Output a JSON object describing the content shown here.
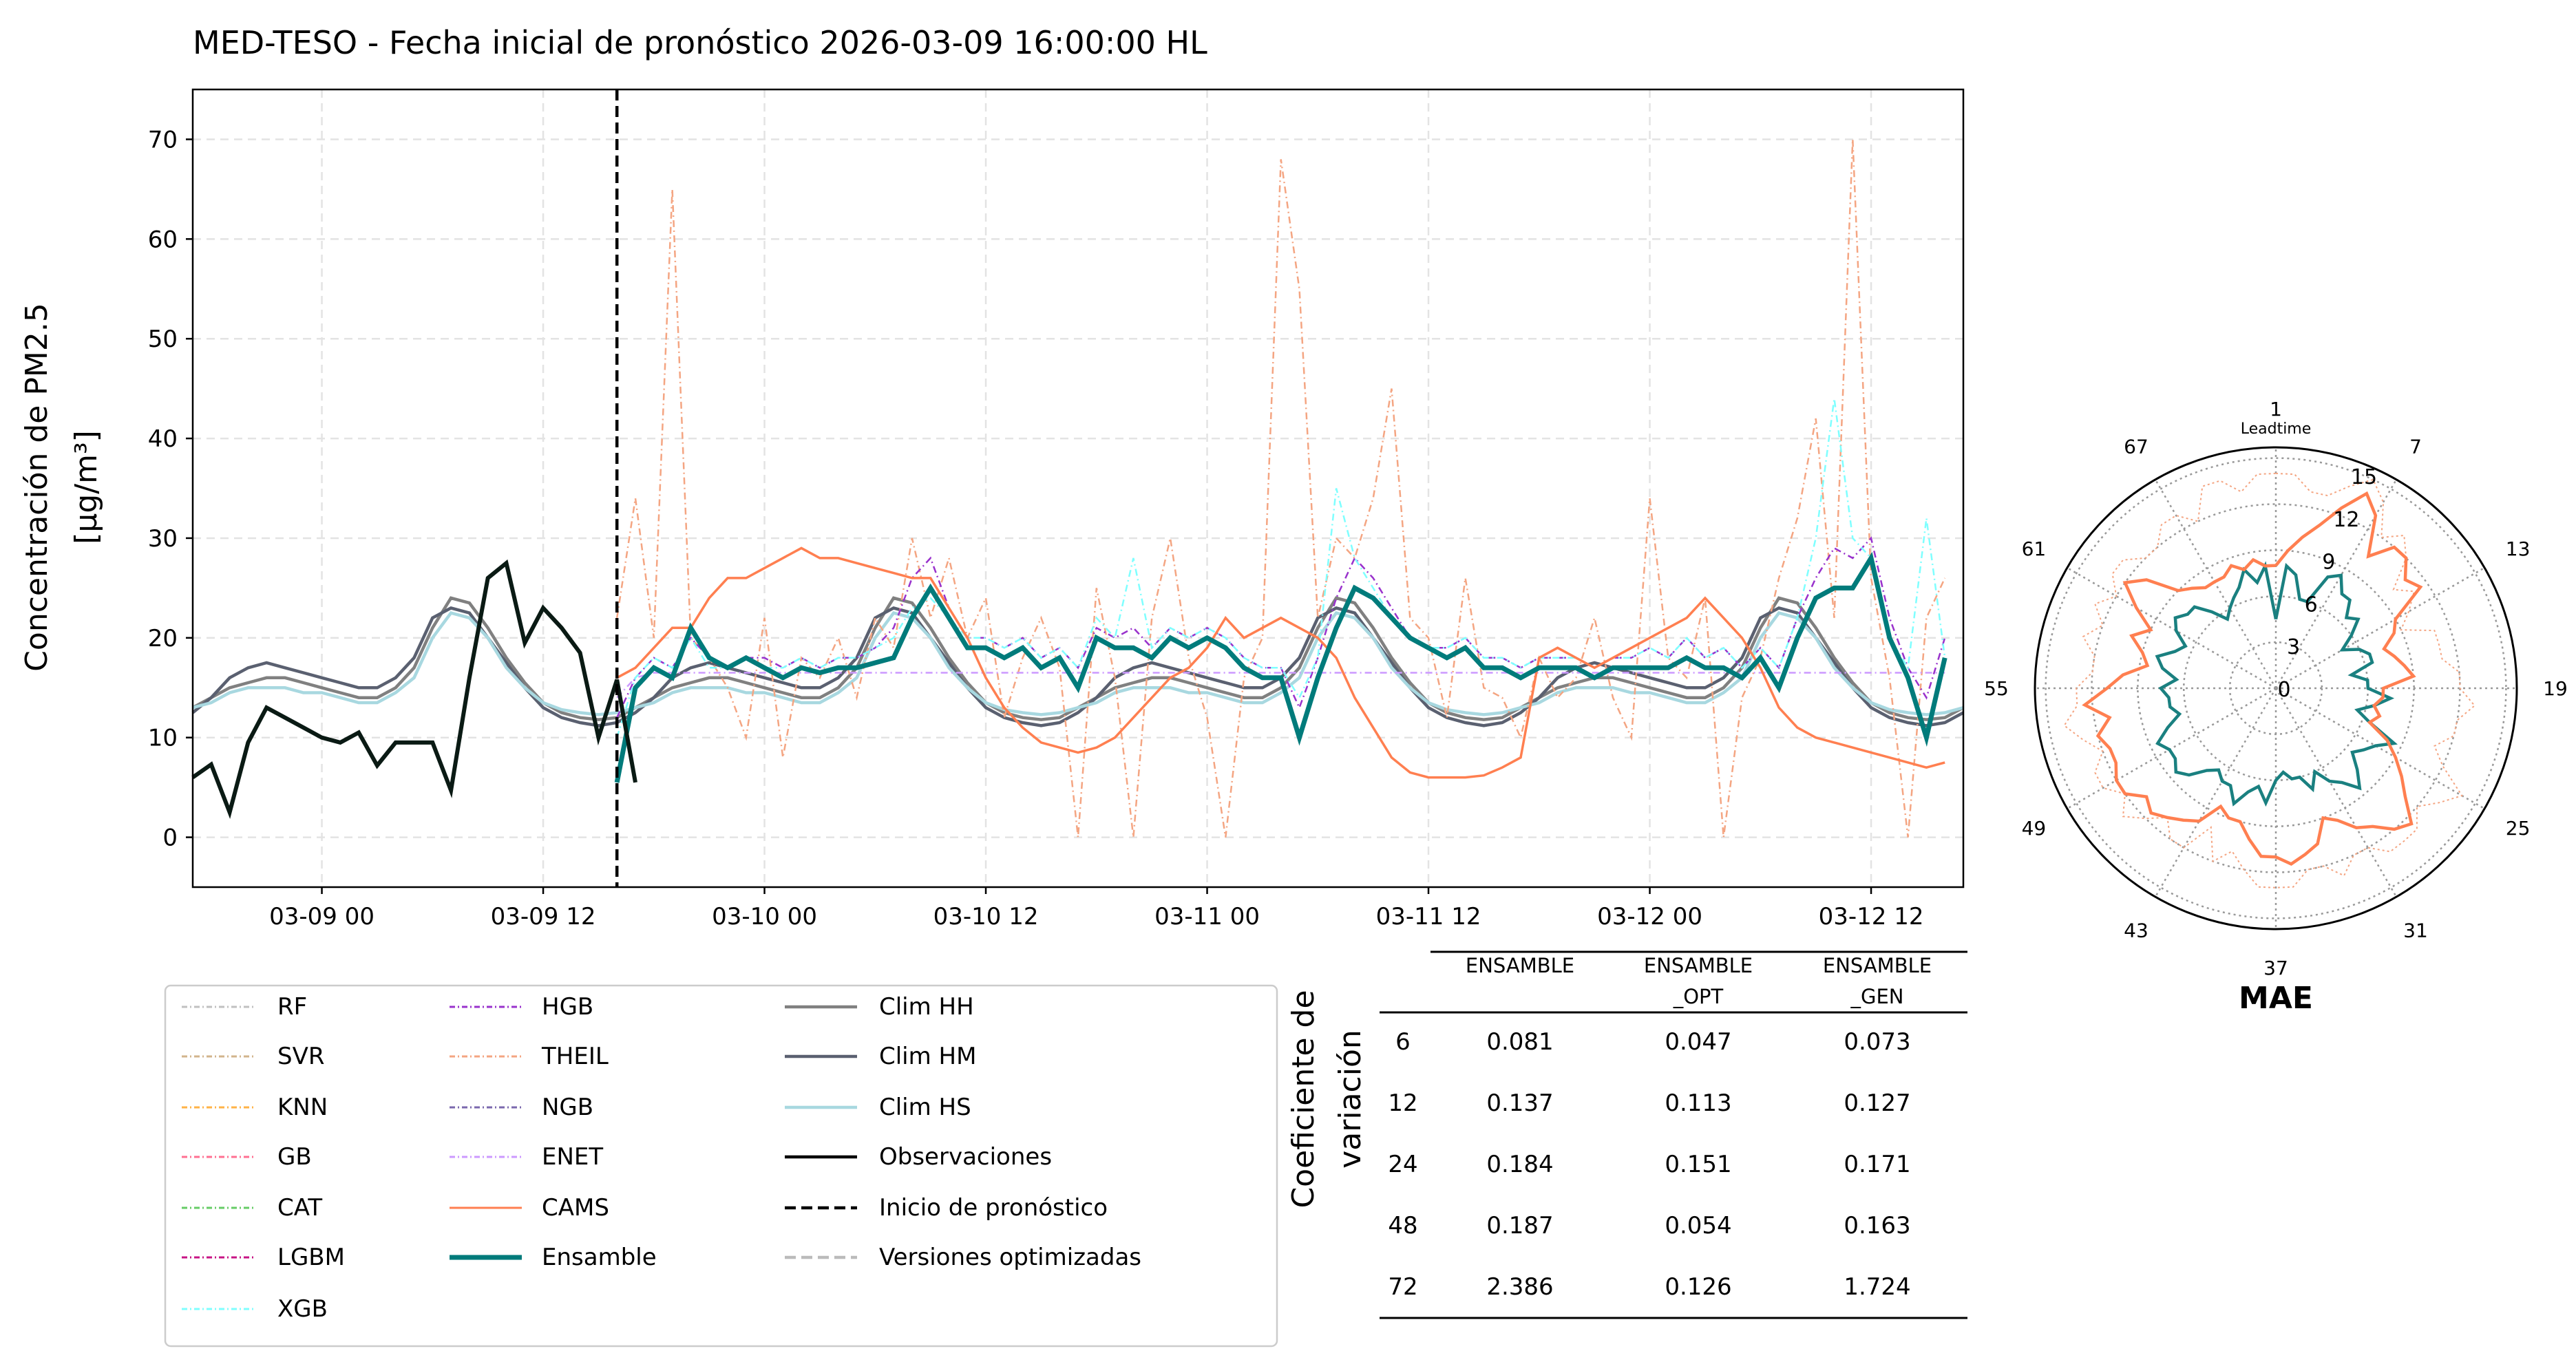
{
  "chart_data": [
    {
      "type": "line",
      "title": "MED-TESO - Fecha inicial de pronóstico 2026-03-09 16:00:00 HL",
      "ylabel_line1": "Concentración de PM2.5",
      "ylabel_line2": "[μg/m³]",
      "xlabel": "",
      "ylim": [
        -5,
        75
      ],
      "yticks": [
        0,
        10,
        20,
        30,
        40,
        50,
        60,
        70
      ],
      "x_units": "hours since 03-08 17:00",
      "xlim": [
        0,
        96
      ],
      "xticks": [
        {
          "h": 7,
          "label": "03-09 00"
        },
        {
          "h": 19,
          "label": "03-09 12"
        },
        {
          "h": 31,
          "label": "03-10 00"
        },
        {
          "h": 43,
          "label": "03-10 12"
        },
        {
          "h": 55,
          "label": "03-11 00"
        },
        {
          "h": 67,
          "label": "03-11 12"
        },
        {
          "h": 79,
          "label": "03-12 00"
        },
        {
          "h": 91,
          "label": "03-12 12"
        }
      ],
      "grid": true,
      "forecast_start_h": 23,
      "observations": {
        "start_h": 0,
        "values": [
          6,
          7.3,
          2.5,
          9.5,
          13,
          12,
          11,
          10,
          9.5,
          10.5,
          7.2,
          9.5,
          9.5,
          9.5,
          4.7,
          16,
          26,
          27.5,
          19.5,
          23,
          21,
          18.5,
          10,
          15.8,
          5.5
        ]
      },
      "climatology_start_h": 0,
      "climatology_profiles_by_hour": {
        "Clim HH": [
          15,
          14.5,
          14,
          14,
          15,
          17,
          21,
          24,
          23.5,
          21,
          18,
          15.5,
          13.5,
          12.5,
          12,
          11.8,
          12,
          13,
          14,
          15,
          15.5,
          16,
          16,
          15.5
        ],
        "Clim HM": [
          16,
          15.5,
          15,
          15,
          16,
          18,
          22,
          23,
          22.5,
          20,
          17.5,
          15,
          13,
          12,
          11.5,
          11.2,
          11.5,
          12.5,
          14,
          16,
          17,
          17.5,
          17,
          16.5
        ],
        "Clim HS": [
          14.5,
          14,
          13.5,
          13.5,
          14.5,
          16,
          20,
          22.5,
          22,
          20,
          17,
          15,
          13.5,
          12.8,
          12.5,
          12.3,
          12.5,
          13,
          13.5,
          14.5,
          15,
          15,
          15,
          14.5
        ]
      },
      "forecast_series_start_h": 23,
      "series": [
        {
          "name": "Ensamble",
          "color": "#007b7b",
          "values": [
            5.5,
            15,
            17,
            16,
            21,
            18,
            17,
            18,
            17,
            16,
            17,
            16.5,
            17,
            17,
            17.5,
            18,
            22,
            25,
            22,
            19,
            19,
            18,
            19,
            17,
            18,
            15,
            20,
            19,
            19,
            18,
            20,
            19,
            20,
            19,
            17,
            16,
            16,
            10,
            16,
            21,
            25,
            24,
            22,
            20,
            19,
            18,
            19,
            17,
            17,
            16,
            17,
            17,
            17,
            16,
            17,
            17,
            17,
            17,
            18,
            17,
            17,
            16,
            18,
            15,
            20,
            24,
            25,
            25,
            28,
            20,
            16,
            10,
            18
          ]
        },
        {
          "name": "CAMS",
          "color": "#ff7f50",
          "values": [
            16,
            17,
            19,
            21,
            21,
            24,
            26,
            26,
            27,
            28,
            29,
            28,
            28,
            27.5,
            27,
            26.5,
            26,
            26,
            23,
            20,
            16,
            13,
            11,
            9.5,
            9,
            8.5,
            9,
            10,
            12,
            14,
            16,
            17,
            19,
            22,
            20,
            21,
            22,
            21,
            20,
            18,
            14,
            11,
            8,
            6.5,
            6,
            6,
            6,
            6.2,
            7,
            8,
            18,
            19,
            18,
            17,
            18,
            19,
            20,
            21,
            22,
            24,
            22,
            20,
            17,
            13,
            11,
            10,
            9.5,
            9,
            8.5,
            8,
            7.5,
            7,
            7.5
          ]
        },
        {
          "name": "THEIL",
          "color": "#f4a582",
          "values": [
            22,
            34,
            20,
            65,
            20,
            18,
            15,
            10,
            22,
            8,
            18,
            16,
            20,
            14,
            22,
            19,
            30,
            22,
            28,
            20,
            24,
            12,
            18,
            22,
            17,
            0,
            25,
            16,
            0,
            22,
            30,
            18,
            12,
            0,
            16,
            20,
            68,
            55,
            22,
            30,
            28,
            34,
            45,
            22,
            20,
            12,
            26,
            15,
            14,
            10,
            18,
            14,
            16,
            22,
            14,
            10,
            34,
            18,
            16,
            24,
            0,
            14,
            18,
            26,
            32,
            42,
            22,
            70,
            26,
            16,
            0,
            22,
            26
          ]
        },
        {
          "name": "XGB",
          "color": "#7fffff",
          "values": [
            10,
            16,
            18,
            17,
            20,
            17,
            17,
            18,
            17,
            17,
            18,
            17,
            18,
            18,
            19,
            20,
            23,
            24,
            22,
            20,
            20,
            19,
            20,
            18,
            19,
            17,
            22,
            20,
            28,
            19,
            21,
            20,
            21,
            20,
            18,
            17,
            17,
            14,
            18,
            35,
            28,
            25,
            22,
            20,
            19,
            19,
            20,
            18,
            18,
            17,
            18,
            18,
            18,
            17,
            18,
            18,
            19,
            18,
            20,
            18,
            19,
            17,
            19,
            17,
            22,
            30,
            44,
            30,
            28,
            20,
            17,
            32,
            18
          ]
        },
        {
          "name": "HGB",
          "color": "#9932cc",
          "values": [
            12,
            16,
            18,
            17,
            20,
            18,
            17,
            18,
            18,
            17,
            18,
            17,
            18,
            18,
            19,
            21,
            26,
            28,
            23,
            20,
            20,
            19,
            20,
            18,
            19,
            17,
            21,
            20,
            21,
            19,
            21,
            20,
            21,
            20,
            18,
            17,
            17,
            13,
            18,
            24,
            28,
            26,
            23,
            20,
            19,
            19,
            20,
            18,
            18,
            17,
            18,
            18,
            18,
            17,
            18,
            18,
            19,
            18,
            20,
            18,
            19,
            17,
            19,
            17,
            22,
            26,
            29,
            28,
            30,
            22,
            17,
            14,
            20
          ]
        },
        {
          "name": "ENET",
          "color": "#cc99ff",
          "values": [
            14,
            16,
            16.5,
            16.5,
            16.5,
            16.5,
            16.5,
            16.5,
            16.5,
            16.5,
            16.5,
            16.5,
            16.5,
            16.5,
            16.5,
            16.5,
            16.5,
            16.5,
            16.5,
            16.5,
            16.5,
            16.5,
            16.5,
            16.5,
            16.5,
            16.5,
            16.5,
            16.5,
            16.5,
            16.5,
            16.5,
            16.5,
            16.5,
            16.5,
            16.5,
            16.5,
            16.5,
            16.5,
            16.5,
            16.5,
            16.5,
            16.5,
            16.5,
            16.5,
            16.5,
            16.5,
            16.5,
            16.5,
            16.5,
            16.5,
            16.5,
            16.5,
            16.5,
            16.5,
            16.5,
            16.5,
            16.5,
            16.5,
            16.5,
            16.5,
            16.5,
            16.5,
            16.5,
            16.5,
            16.5,
            16.5,
            16.5,
            16.5,
            16.5,
            16.5,
            16.5,
            16.5,
            16.5
          ]
        }
      ]
    },
    {
      "type": "polar-line",
      "title": "MAE",
      "theta_label": "Leadtime",
      "theta_ticks": [
        1,
        7,
        13,
        19,
        25,
        31,
        37,
        43,
        49,
        55,
        61,
        67
      ],
      "r_ticks": [
        0,
        3,
        6,
        9,
        12,
        15
      ],
      "rlim": [
        0,
        15.7
      ],
      "series": [
        {
          "name": "CAMS",
          "color": "#ff7f50",
          "values": [
            8,
            9,
            10,
            11,
            12.5,
            14,
            13,
            10.5,
            12,
            12,
            11,
            11.5,
            9,
            8.5,
            7.5,
            8,
            8.5,
            9,
            7,
            7,
            6.5,
            7,
            6.5,
            8,
            9,
            10,
            11,
            12.5,
            12,
            11,
            10.5,
            9.5,
            9,
            10.5,
            11,
            11.5,
            11,
            11,
            10,
            9,
            9,
            8.5,
            10,
            10.5,
            11,
            11.5,
            11,
            12,
            12,
            11.5,
            11.5,
            12,
            11,
            12.5,
            11,
            10,
            8.5,
            9,
            10,
            9,
            10.5,
            12,
            11,
            9,
            8.5,
            8,
            8,
            8,
            8.5,
            8,
            8.5,
            8
          ]
        },
        {
          "name": "Ensamble",
          "color": "#1a8080",
          "values": [
            4.5,
            8,
            7.5,
            6,
            6,
            8,
            8.5,
            7.5,
            7.5,
            6.5,
            7,
            6,
            5,
            6,
            6.5,
            6.5,
            5,
            6,
            6,
            7.5,
            6.5,
            5.5,
            6.5,
            8.5,
            7.5,
            7,
            6.5,
            7.5,
            8.5,
            7.5,
            7,
            6,
            7,
            6,
            6,
            5.5,
            6,
            7.5,
            6.5,
            7,
            8,
            7,
            7,
            6.5,
            7,
            8,
            8.5,
            8,
            8,
            8.5,
            7.5,
            6.5,
            7,
            7,
            7.5,
            6.5,
            7.5,
            8,
            7,
            6.5,
            7.5,
            8,
            7.5,
            7.5,
            6.5,
            5.5,
            6,
            6.5,
            7,
            8,
            7,
            8
          ]
        },
        {
          "name": "THEIL",
          "color": "#f4a582",
          "values": [
            14,
            14,
            13,
            13,
            14,
            15,
            14,
            12,
            13,
            12,
            10,
            11,
            10,
            9,
            11,
            11,
            11,
            12,
            12,
            13,
            12,
            12,
            11,
            12,
            14,
            13,
            12,
            13,
            13,
            13,
            12,
            12,
            13,
            12,
            12,
            13,
            13,
            13,
            12,
            11,
            12,
            10,
            12,
            12,
            11,
            12,
            13,
            12,
            13,
            13,
            12,
            13,
            14,
            13,
            13,
            12,
            12,
            13,
            12,
            13,
            12,
            13,
            13,
            12,
            12,
            13,
            13,
            12,
            14,
            14,
            13,
            14
          ]
        }
      ]
    }
  ],
  "legend": {
    "items": [
      {
        "label": "RF",
        "color": "#c0c0c0",
        "style": "dashdot"
      },
      {
        "label": "SVR",
        "color": "#d2b48c",
        "style": "dashdot"
      },
      {
        "label": "KNN",
        "color": "#ffb347",
        "style": "dashdot"
      },
      {
        "label": "GB",
        "color": "#ff6f91",
        "style": "dashdot"
      },
      {
        "label": "CAT",
        "color": "#66cc66",
        "style": "dashdot"
      },
      {
        "label": "LGBM",
        "color": "#c71585",
        "style": "dashdot"
      },
      {
        "label": "XGB",
        "color": "#7fffff",
        "style": "dashdot"
      },
      {
        "label": "HGB",
        "color": "#9932cc",
        "style": "dashdot"
      },
      {
        "label": "THEIL",
        "color": "#f4a582",
        "style": "dashdot"
      },
      {
        "label": "NGB",
        "color": "#7b68ae",
        "style": "dashdot"
      },
      {
        "label": "ENET",
        "color": "#cc99ff",
        "style": "dashdot"
      },
      {
        "label": "CAMS",
        "color": "#ff7f50",
        "style": "solid"
      },
      {
        "label": "Ensamble",
        "color": "#007b7b",
        "style": "thick"
      },
      {
        "label": "Clim HH",
        "color": "#808080",
        "style": "solid"
      },
      {
        "label": "Clim HM",
        "color": "#5a6070",
        "style": "solid"
      },
      {
        "label": "Clim HS",
        "color": "#a8d8e0",
        "style": "solid"
      },
      {
        "label": "Observaciones",
        "color": "#000000",
        "style": "solid"
      },
      {
        "label": "Inicio de pronóstico",
        "color": "#000000",
        "style": "dashed"
      },
      {
        "label": "Versiones optimizadas",
        "color": "#bbbbbb",
        "style": "dashed"
      }
    ]
  },
  "table": {
    "row_header_label_line1": "Coeficiente de",
    "row_header_label_line2": "variación",
    "columns": [
      {
        "line1": "ENSAMBLE",
        "line2": ""
      },
      {
        "line1": "ENSAMBLE",
        "line2": "_OPT"
      },
      {
        "line1": "ENSAMBLE",
        "line2": "_GEN"
      }
    ],
    "rows": [
      {
        "lead": "6",
        "values": [
          "0.081",
          "0.047",
          "0.073"
        ]
      },
      {
        "lead": "12",
        "values": [
          "0.137",
          "0.113",
          "0.127"
        ]
      },
      {
        "lead": "24",
        "values": [
          "0.184",
          "0.151",
          "0.171"
        ]
      },
      {
        "lead": "48",
        "values": [
          "0.187",
          "0.054",
          "0.163"
        ]
      },
      {
        "lead": "72",
        "values": [
          "2.386",
          "0.126",
          "1.724"
        ]
      }
    ]
  }
}
